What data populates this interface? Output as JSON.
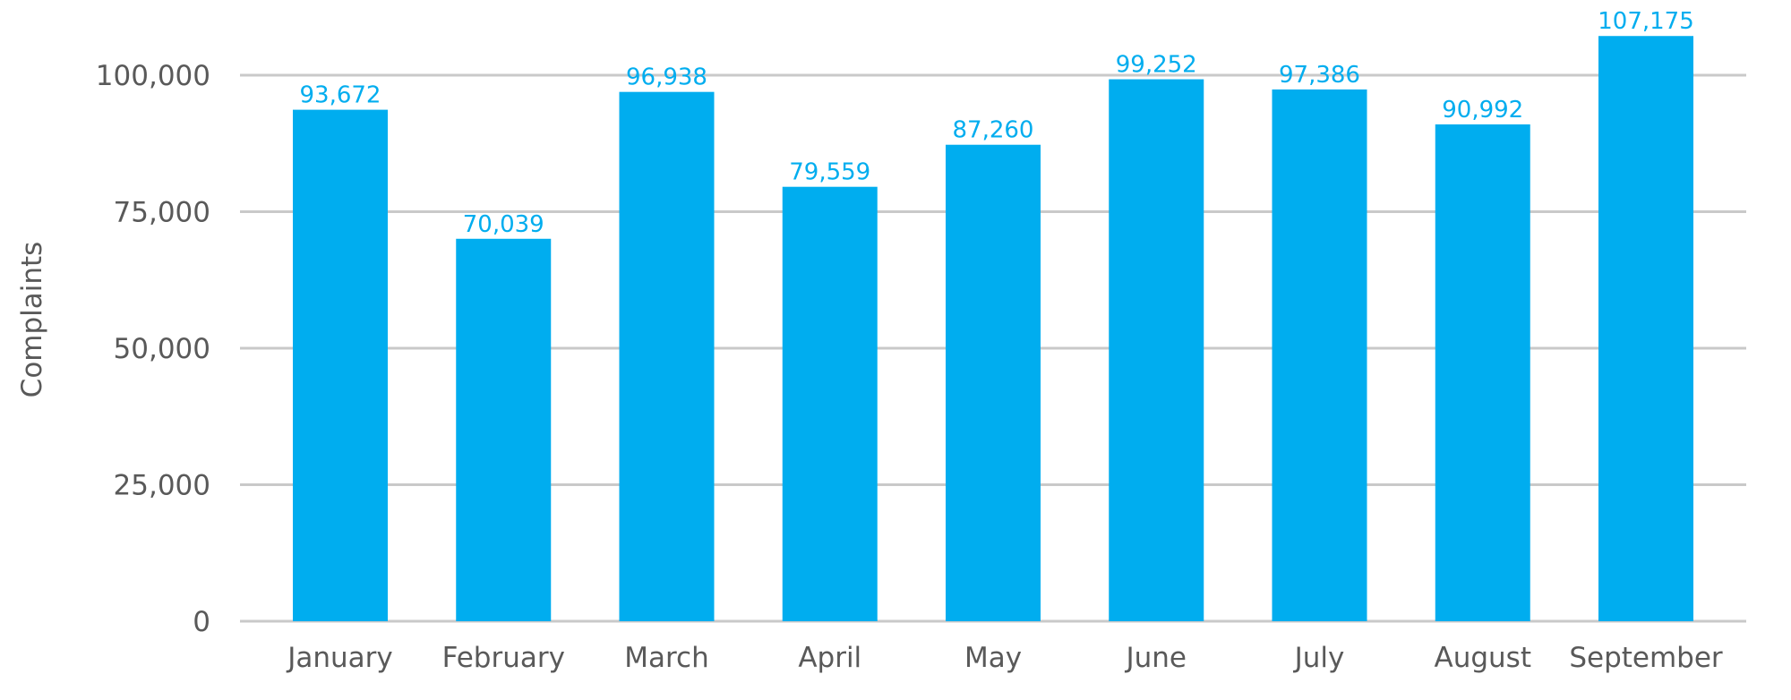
{
  "chart_data": {
    "type": "bar",
    "title": "",
    "xlabel": "",
    "ylabel": "Complaints",
    "ylim": [
      0,
      110000
    ],
    "yticks": [
      0,
      25000,
      50000,
      75000,
      100000
    ],
    "ytick_labels": [
      "0",
      "25,000",
      "50,000",
      "75,000",
      "100,000"
    ],
    "grid": true,
    "legend": "none",
    "categories": [
      "January",
      "February",
      "March",
      "April",
      "May",
      "June",
      "July",
      "August",
      "September"
    ],
    "values": [
      93672,
      70039,
      96938,
      79559,
      87260,
      99252,
      97386,
      90992,
      107175
    ],
    "value_labels": [
      "93,672",
      "70,039",
      "96,938",
      "79,559",
      "87,260",
      "99,252",
      "97,386",
      "90,992",
      "107,175"
    ],
    "colors": {
      "bar": "#00adef",
      "grid": "#c9c9c9",
      "text": "#595959",
      "data_label": "#00adef"
    }
  }
}
